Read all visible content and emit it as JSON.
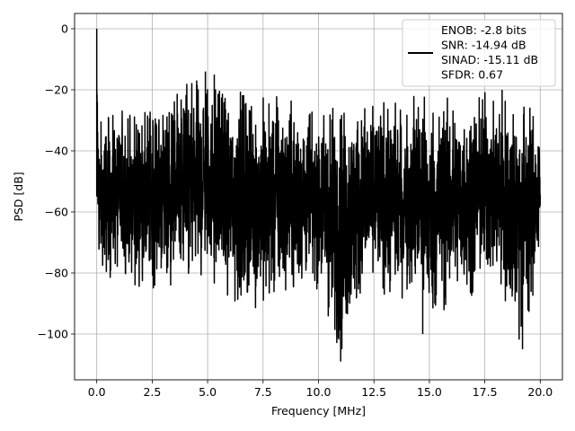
{
  "chart_data": {
    "type": "line",
    "title": "",
    "xlabel": "Frequency [MHz]",
    "ylabel": "PSD [dB]",
    "xlim": [
      -1.0,
      21.0
    ],
    "ylim": [
      -115,
      5
    ],
    "xticks": [
      0.0,
      2.5,
      5.0,
      7.5,
      10.0,
      12.5,
      15.0,
      17.5,
      20.0
    ],
    "xtick_labels": [
      "0.0",
      "2.5",
      "5.0",
      "7.5",
      "10.0",
      "12.5",
      "15.0",
      "17.5",
      "20.0"
    ],
    "yticks": [
      0,
      -20,
      -40,
      -60,
      -80,
      -100
    ],
    "ytick_labels": [
      "0",
      "−20",
      "−40",
      "−60",
      "−80",
      "−100"
    ],
    "grid": true,
    "legend_position": "top-right",
    "line_color": "#000000",
    "series": [
      {
        "name": "ENOB: -2.8 bits\nSNR: -14.94 dB\nSINAD: -15.11 dB\nSFDR: 0.67",
        "description": "noise-like PSD spanning 0-20 MHz",
        "envelope": {
          "x": [
            0.0,
            0.05,
            0.1,
            1.0,
            2.0,
            3.0,
            4.0,
            4.5,
            5.0,
            5.5,
            6.0,
            7.0,
            8.0,
            9.0,
            10.0,
            11.0,
            12.0,
            13.0,
            14.0,
            14.5,
            15.0,
            16.0,
            17.0,
            17.5,
            18.0,
            19.0,
            20.0
          ],
          "upper": [
            0,
            -20,
            -30,
            -27,
            -25,
            -22,
            -18,
            -17,
            -14,
            -15,
            -19,
            -21,
            -22,
            -24,
            -24,
            -23,
            -24,
            -24,
            -24,
            -19,
            -21,
            -22,
            -22,
            -18,
            -21,
            -18,
            -30
          ],
          "lower": [
            -62,
            -70,
            -80,
            -83,
            -86,
            -85,
            -85,
            -85,
            -84,
            -86,
            -90,
            -92,
            -91,
            -88,
            -86,
            -109,
            -88,
            -89,
            -88,
            -88,
            -100,
            -90,
            -88,
            -86,
            -85,
            -105,
            -80
          ]
        },
        "notable_points": [
          {
            "x": 0.0,
            "y": 0
          },
          {
            "x": 4.9,
            "y": -14
          },
          {
            "x": 5.3,
            "y": -15
          },
          {
            "x": 11.0,
            "y": -109
          },
          {
            "x": 14.7,
            "y": -100
          },
          {
            "x": 19.2,
            "y": -105
          }
        ]
      }
    ]
  }
}
